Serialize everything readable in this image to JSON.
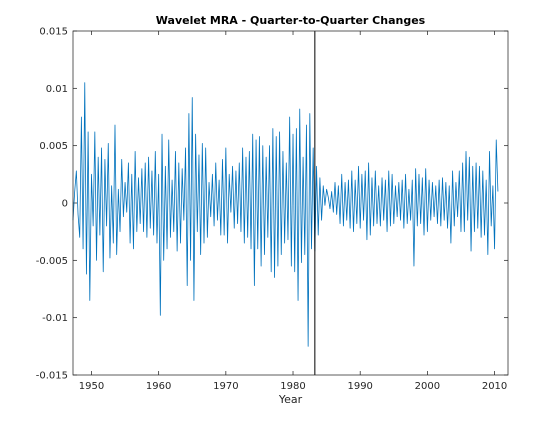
{
  "chart_data": {
    "type": "line",
    "title": "Wavelet MRA - Quarter-to-Quarter Changes",
    "xlabel": "Year",
    "ylabel": "",
    "xlim": [
      1947.25,
      2012.0
    ],
    "ylim": [
      -0.015,
      0.015
    ],
    "xticks": [
      1950,
      1960,
      1970,
      1980,
      1990,
      2000,
      2010
    ],
    "yticks": [
      -0.015,
      -0.01,
      -0.005,
      0,
      0.005,
      0.01,
      0.015
    ],
    "xtick_labels": [
      "1950",
      "1960",
      "1970",
      "1980",
      "1990",
      "2000",
      "2010"
    ],
    "ytick_labels": [
      "-0.015",
      "-0.01",
      "-0.005",
      "0",
      "0.005",
      "0.01",
      "0.015"
    ],
    "vline_x": 1983.25,
    "grid": false,
    "legend": "none",
    "series": [
      {
        "color": "#0072BD",
        "x_start": 1947.25,
        "x_step": 0.25,
        "values": [
          -0.0015,
          0.001,
          0.0028,
          -0.001,
          -0.003,
          0.0075,
          -0.004,
          0.0105,
          -0.0062,
          0.0062,
          -0.0085,
          0.0025,
          -0.002,
          0.0062,
          -0.005,
          0.004,
          -0.0028,
          0.0048,
          -0.006,
          0.0038,
          -0.002,
          0.0052,
          -0.0048,
          0.0015,
          -0.0035,
          0.0068,
          -0.0045,
          0.0012,
          -0.0025,
          0.0038,
          -0.0012,
          0.0018,
          -0.0008,
          0.0035,
          -0.0035,
          0.0025,
          -0.004,
          0.0045,
          -0.0025,
          0.0022,
          -0.0018,
          0.003,
          -0.0025,
          0.0035,
          -0.003,
          0.004,
          -0.0022,
          0.0028,
          -0.0028,
          0.0045,
          -0.0035,
          0.0025,
          -0.0098,
          0.006,
          -0.005,
          0.0032,
          -0.004,
          0.0055,
          -0.003,
          0.002,
          -0.0025,
          0.0045,
          -0.0042,
          0.0035,
          -0.0035,
          0.003,
          -0.0015,
          0.0048,
          -0.0072,
          0.0078,
          -0.005,
          0.0092,
          -0.0085,
          0.006,
          -0.0025,
          0.0042,
          -0.0045,
          0.0052,
          -0.0035,
          0.0048,
          -0.003,
          0.0018,
          -0.0012,
          0.0025,
          -0.002,
          0.0035,
          -0.0015,
          0.002,
          -0.0028,
          0.0038,
          -0.0028,
          0.0048,
          -0.0035,
          0.0025,
          -0.0008,
          0.0032,
          -0.0022,
          0.0028,
          -0.0018,
          0.0035,
          -0.0025,
          0.0048,
          -0.0035,
          0.004,
          -0.003,
          0.0045,
          -0.004,
          0.006,
          -0.0072,
          0.0055,
          -0.004,
          0.0058,
          -0.0055,
          0.005,
          -0.0045,
          0.004,
          -0.003,
          0.005,
          -0.006,
          0.0065,
          -0.0065,
          0.0058,
          -0.0055,
          0.0062,
          -0.0045,
          0.0045,
          -0.0035,
          0.0035,
          -0.0032,
          0.0075,
          -0.0055,
          0.006,
          -0.006,
          0.0065,
          -0.0085,
          0.0082,
          -0.0052,
          0.004,
          -0.0045,
          0.0068,
          -0.0125,
          0.0078,
          -0.004,
          0.0048,
          -0.0042,
          0.0032,
          -0.0028,
          0.0022,
          -0.0015,
          0.0015,
          -0.0002,
          0.0012,
          0.0005,
          -0.0005,
          0.001,
          -0.0008,
          0.0018,
          -0.001,
          0.0015,
          -0.0018,
          0.0025,
          -0.002,
          0.0018,
          -0.0015,
          0.002,
          -0.0022,
          0.0028,
          -0.0025,
          0.002,
          -0.0018,
          0.0032,
          -0.0022,
          0.0025,
          -0.0015,
          0.0028,
          -0.0032,
          0.0035,
          -0.0028,
          0.0022,
          -0.002,
          0.0028,
          -0.0018,
          0.0015,
          -0.002,
          0.0022,
          -0.0015,
          0.002,
          -0.0025,
          0.0028,
          -0.002,
          0.0025,
          -0.0018,
          0.0015,
          -0.0012,
          0.0018,
          -0.0015,
          0.002,
          -0.0022,
          0.0025,
          -0.0018,
          0.0012,
          -0.0015,
          0.002,
          -0.0055,
          0.003,
          -0.002,
          0.0025,
          -0.0018,
          0.0022,
          -0.0028,
          0.003,
          -0.0025,
          0.002,
          -0.0015,
          0.0018,
          -0.0012,
          0.0015,
          -0.0018,
          0.002,
          -0.002,
          0.0022,
          -0.0015,
          0.0018,
          -0.0022,
          0.0015,
          -0.0035,
          0.0028,
          -0.002,
          0.0018,
          -0.0012,
          0.0028,
          -0.0025,
          0.0035,
          -0.0025,
          0.0045,
          -0.0015,
          0.004,
          -0.0042,
          0.0032,
          -0.0025,
          0.0035,
          -0.0022,
          0.0032,
          -0.003,
          0.0028,
          -0.0028,
          0.002,
          -0.0045,
          0.0045,
          -0.002,
          0.0015,
          -0.004,
          0.0055,
          0.001
        ]
      }
    ]
  }
}
